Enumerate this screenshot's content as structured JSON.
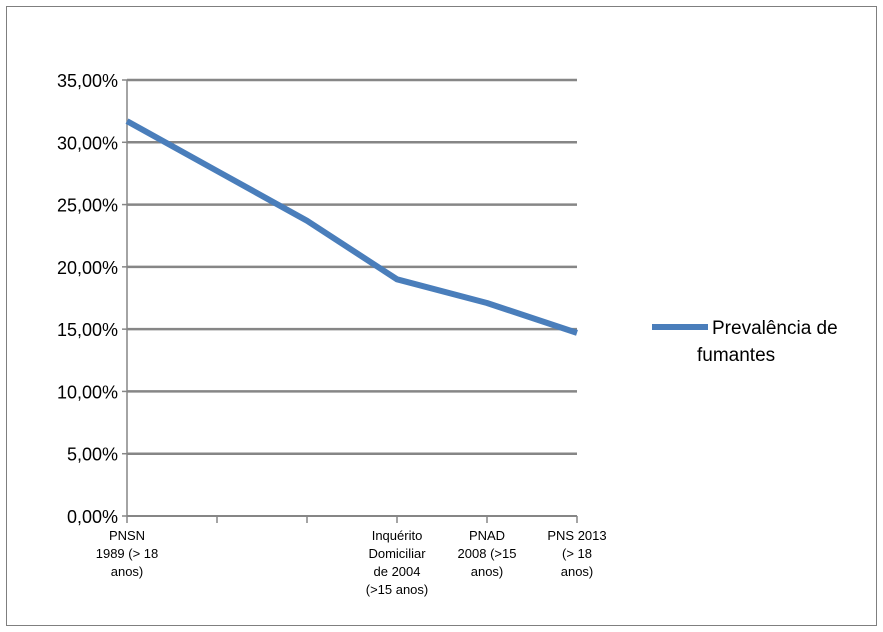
{
  "chart_data": {
    "type": "line",
    "title": "",
    "xlabel": "",
    "ylabel": "",
    "categories": [
      [
        "PNSN",
        "1989 (> 18",
        "anos)"
      ],
      [],
      [],
      [
        "Inquérito",
        "Domiciliar",
        "de 2004",
        "(>15 anos)"
      ],
      [
        "PNAD",
        "2008 (>15",
        "anos)"
      ],
      [
        "PNS 2013",
        "(> 18",
        "anos)"
      ]
    ],
    "series": [
      {
        "name": "Prevalência de fumantes",
        "color": "#4a7ebb",
        "values": [
          0.317,
          0.277,
          0.237,
          0.19,
          0.171,
          0.147
        ]
      }
    ],
    "ylim": [
      0,
      0.35
    ],
    "yticks": [
      0,
      0.05,
      0.1,
      0.15,
      0.2,
      0.25,
      0.3,
      0.35
    ],
    "ytick_labels": [
      "0,00%",
      "5,00%",
      "10,00%",
      "15,00%",
      "20,00%",
      "25,00%",
      "30,00%",
      "35,00%"
    ],
    "grid": true,
    "legend_position": "right",
    "legend_lines": [
      "Prevalência de",
      "fumantes"
    ]
  }
}
